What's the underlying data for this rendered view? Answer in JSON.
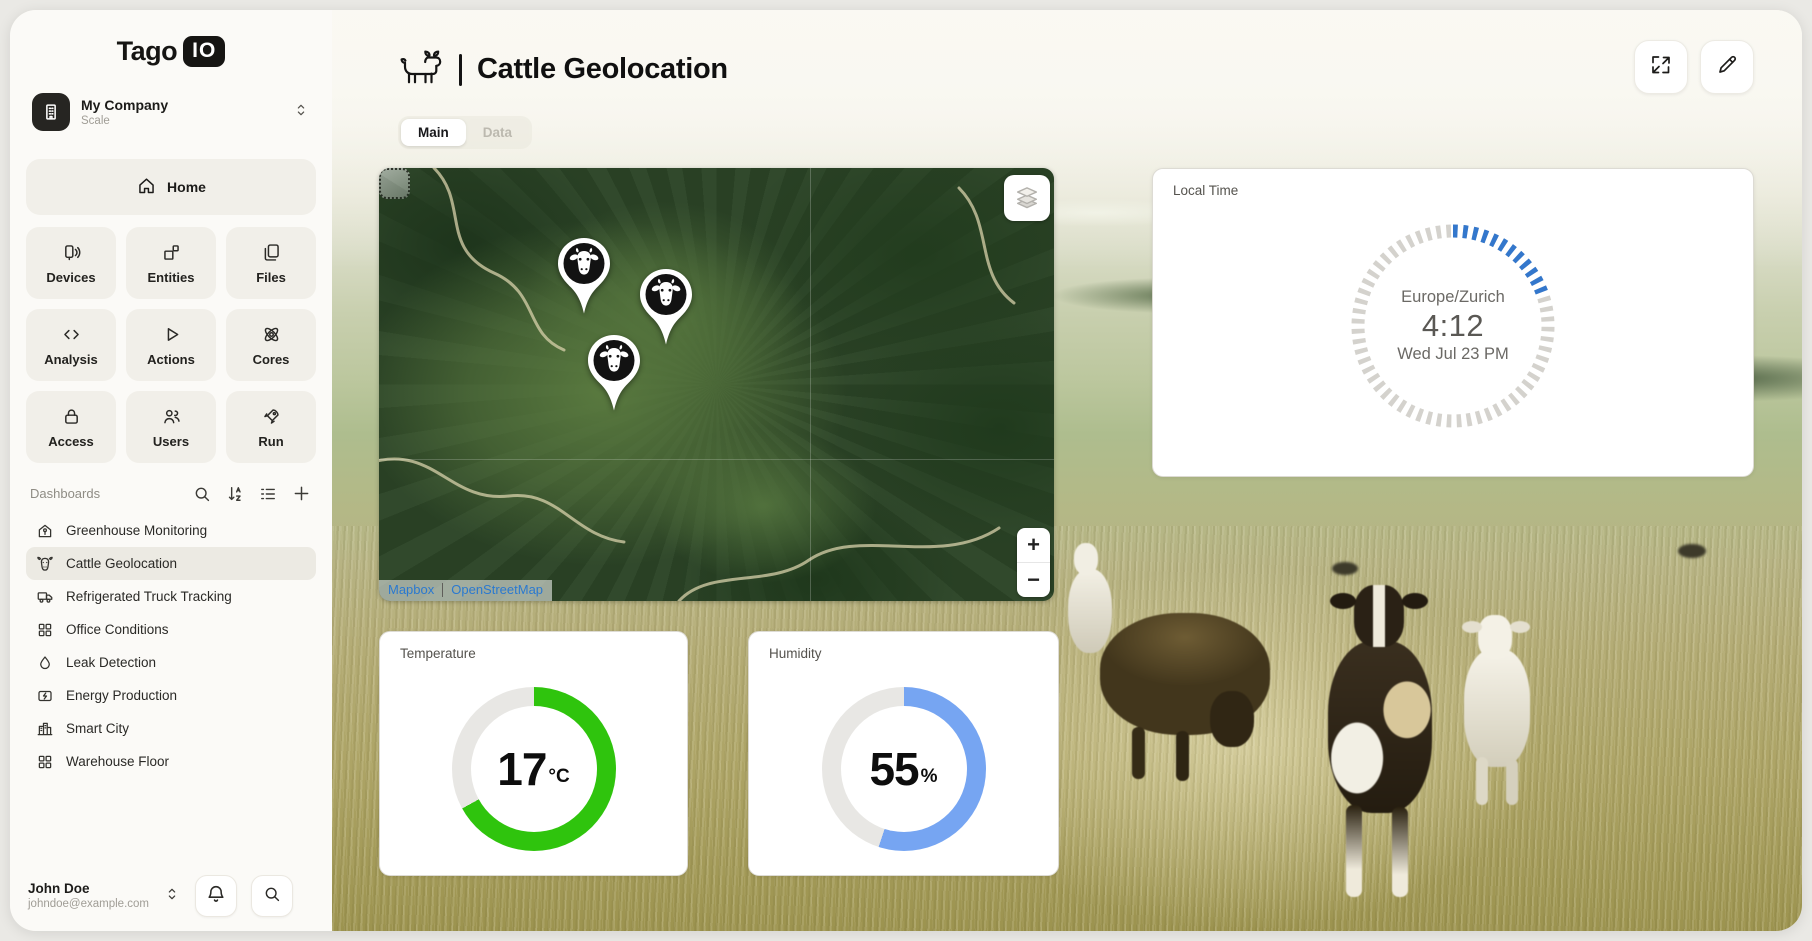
{
  "brand": {
    "name": "Tago",
    "badge": "IO"
  },
  "workspace": {
    "name": "My Company",
    "plan": "Scale",
    "icon": "building-icon"
  },
  "nav": {
    "home": {
      "label": "Home",
      "icon": "home-icon"
    },
    "items": [
      {
        "label": "Devices",
        "icon": "devices-icon"
      },
      {
        "label": "Entities",
        "icon": "entities-icon"
      },
      {
        "label": "Files",
        "icon": "files-icon"
      },
      {
        "label": "Analysis",
        "icon": "analysis-icon"
      },
      {
        "label": "Actions",
        "icon": "actions-icon"
      },
      {
        "label": "Cores",
        "icon": "cores-icon"
      },
      {
        "label": "Access",
        "icon": "access-icon"
      },
      {
        "label": "Users",
        "icon": "users-icon"
      },
      {
        "label": "Run",
        "icon": "run-icon"
      }
    ]
  },
  "dashboards": {
    "title": "Dashboards",
    "items": [
      {
        "label": "Greenhouse Monitoring",
        "icon": "greenhouse-icon"
      },
      {
        "label": "Cattle Geolocation",
        "icon": "cattle-icon"
      },
      {
        "label": "Refrigerated Truck Tracking",
        "icon": "truck-icon"
      },
      {
        "label": "Office Conditions",
        "icon": "office-icon"
      },
      {
        "label": "Leak Detection",
        "icon": "leak-icon"
      },
      {
        "label": "Energy Production",
        "icon": "energy-icon"
      },
      {
        "label": "Smart City",
        "icon": "city-icon"
      },
      {
        "label": "Warehouse Floor",
        "icon": "warehouse-icon"
      }
    ]
  },
  "user": {
    "name": "John Doe",
    "email": "johndoe@example.com"
  },
  "page": {
    "title": "Cattle Geolocation",
    "tabs": [
      {
        "label": "Main"
      },
      {
        "label": "Data"
      }
    ]
  },
  "map": {
    "attribution": {
      "provider": "Mapbox",
      "source": "OpenStreetMap"
    },
    "marker_count": 3
  },
  "widgets": {
    "local_time": {
      "label": "Local Time",
      "timezone": "Europe/Zurich",
      "time": "4:12",
      "date": "Wed Jul 23 PM",
      "minutes_elapsed": 12,
      "accent_color": "#3377cc",
      "track_color": "#d4d2cd"
    },
    "temperature": {
      "label": "Temperature",
      "value": "17",
      "unit": "°C",
      "ring_percent": 67,
      "color": "#2fc40d",
      "track_color": "#e8e7e4"
    },
    "humidity": {
      "label": "Humidity",
      "value": "55",
      "unit": "%",
      "ring_percent": 55,
      "color": "#76a5f2",
      "track_color": "#e8e7e4"
    }
  }
}
